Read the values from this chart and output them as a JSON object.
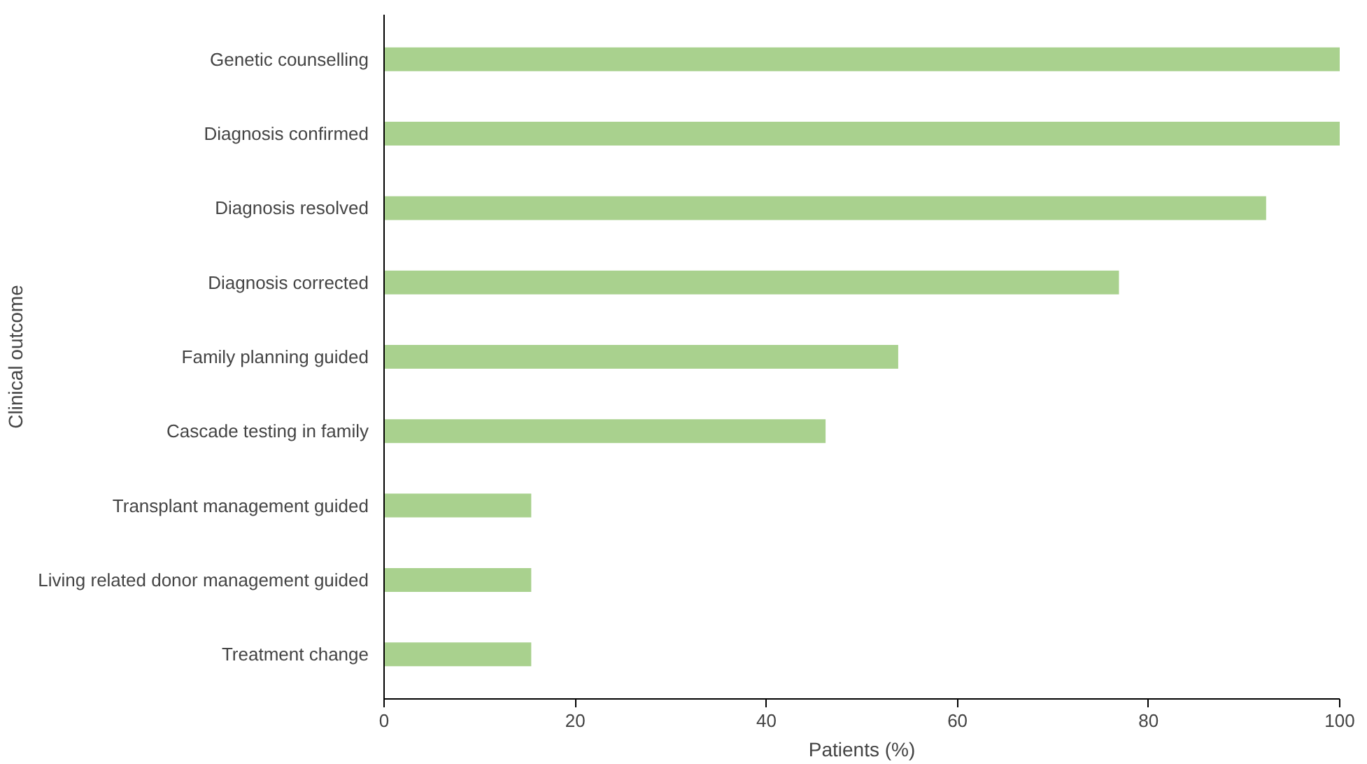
{
  "chart_data": {
    "type": "bar",
    "orientation": "horizontal",
    "xlabel": "Patients (%)",
    "ylabel": "Clinical outcome",
    "categories": [
      "Genetic counselling",
      "Diagnosis confirmed",
      "Diagnosis resolved",
      "Diagnosis corrected",
      "Family planning guided",
      "Cascade testing in family",
      "Transplant management guided",
      "Living related donor management guided",
      "Treatment change"
    ],
    "values": [
      100,
      100,
      92.3,
      76.9,
      53.8,
      46.2,
      15.4,
      15.4,
      15.4
    ],
    "color": "#a9d18e",
    "xlim": [
      0,
      100
    ],
    "xticks": [
      0,
      20,
      40,
      60,
      80,
      100
    ],
    "grid": false
  }
}
